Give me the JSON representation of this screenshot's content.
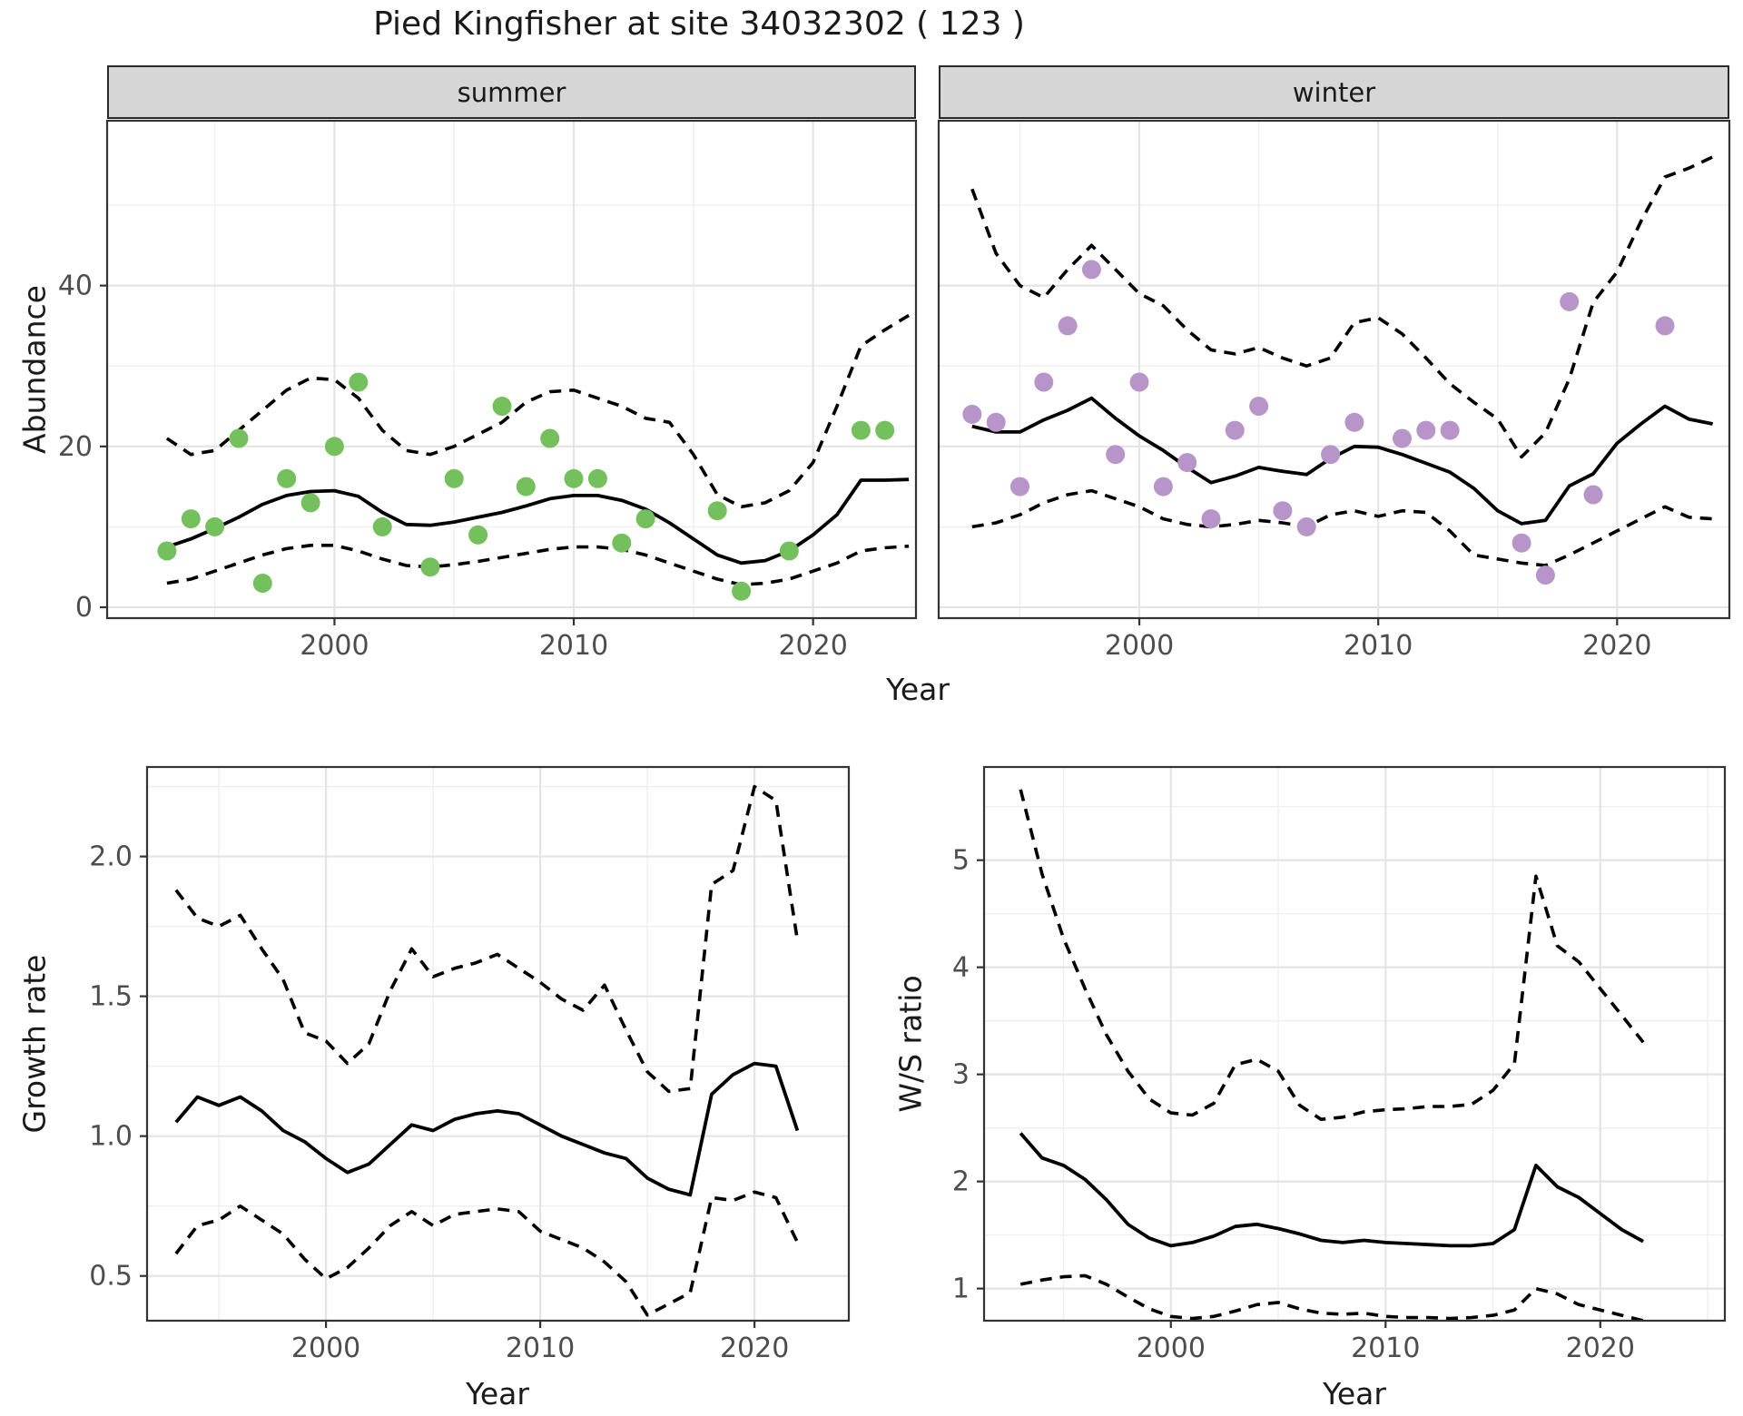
{
  "title": "Pied Kingfisher at site 34032302 ( 123 )",
  "colors": {
    "summer_point": "#73c05c",
    "winter_point": "#b795c8",
    "line": "#000000",
    "strip_bg": "#d6d6d6",
    "grid_major": "#e4e4e4",
    "grid_minor": "#efefef",
    "panel_border": "#333333",
    "tick_mark": "#333333",
    "tick_label": "#4d4d4d",
    "text": "#1a1a1a"
  },
  "top_row": {
    "ylabel": "Abundance",
    "xlabel": "Year"
  },
  "bottom_left": {
    "ylabel": "Growth rate",
    "xlabel": "Year"
  },
  "bottom_right": {
    "ylabel": "W/S ratio",
    "xlabel": "Year"
  },
  "chart_data": [
    {
      "id": "abundance_summer",
      "type": "line",
      "facet_label": "summer",
      "xlabel": "Year",
      "ylabel": "Abundance",
      "xlim": [
        1990.5,
        2024.3
      ],
      "ylim": [
        -1.35,
        60.5
      ],
      "x_ticks": [
        2000,
        2010,
        2020
      ],
      "x_tick_labels": [
        "2000",
        "2010",
        "2020"
      ],
      "x_minor": [
        1995,
        2005,
        2015
      ],
      "y_ticks": [
        0,
        20,
        40
      ],
      "y_tick_labels": [
        "0",
        "20",
        "40"
      ],
      "y_minor": [
        10,
        30,
        50
      ],
      "grid": true,
      "legend": "none",
      "points": [
        [
          1993,
          7
        ],
        [
          1994,
          11
        ],
        [
          1995,
          10
        ],
        [
          1996,
          21
        ],
        [
          1997,
          3
        ],
        [
          1998,
          16
        ],
        [
          1999,
          13
        ],
        [
          2000,
          20
        ],
        [
          2001,
          28
        ],
        [
          2002,
          10
        ],
        [
          2004,
          5
        ],
        [
          2005,
          16
        ],
        [
          2006,
          9
        ],
        [
          2007,
          25
        ],
        [
          2008,
          15
        ],
        [
          2009,
          21
        ],
        [
          2010,
          16
        ],
        [
          2011,
          16
        ],
        [
          2012,
          8
        ],
        [
          2013,
          11
        ],
        [
          2016,
          12
        ],
        [
          2017,
          2
        ],
        [
          2019,
          7
        ],
        [
          2022,
          22
        ],
        [
          2023,
          22
        ]
      ],
      "series": [
        {
          "name": "mean",
          "style": "solid",
          "start_year": 1993,
          "values": [
            7.5,
            8.5,
            9.8,
            11.2,
            12.8,
            13.9,
            14.4,
            14.5,
            13.8,
            11.8,
            10.3,
            10.2,
            10.6,
            11.2,
            11.8,
            12.6,
            13.5,
            13.9,
            13.9,
            13.3,
            12.2,
            10.5,
            8.5,
            6.5,
            5.5,
            5.8,
            7,
            9,
            11.5,
            15.8,
            15.8,
            15.9
          ]
        },
        {
          "name": "upper_ci",
          "style": "dashed",
          "start_year": 1993,
          "values": [
            21,
            19,
            19.5,
            22,
            24.5,
            27,
            28.5,
            28.3,
            26,
            22,
            19.5,
            19,
            20,
            21.5,
            23,
            25.5,
            26.8,
            27,
            26,
            25,
            23.5,
            23,
            19,
            14,
            12.5,
            13,
            14.5,
            18,
            25,
            32.5,
            34.5,
            36.3
          ]
        },
        {
          "name": "lower_ci",
          "style": "dashed",
          "start_year": 1993,
          "values": [
            3,
            3.5,
            4.5,
            5.5,
            6.5,
            7.3,
            7.7,
            7.7,
            7,
            6,
            5.2,
            5,
            5.3,
            5.7,
            6.2,
            6.7,
            7.2,
            7.5,
            7.5,
            7.2,
            6.5,
            5.5,
            4.5,
            3.5,
            2.8,
            3,
            3.5,
            4.5,
            5.5,
            7,
            7.4,
            7.6
          ]
        }
      ]
    },
    {
      "id": "abundance_winter",
      "type": "line",
      "facet_label": "winter",
      "xlabel": "Year",
      "ylabel": "Abundance",
      "xlim": [
        1991.6,
        2024.7
      ],
      "ylim": [
        -1.35,
        60.5
      ],
      "x_ticks": [
        2000,
        2010,
        2020
      ],
      "x_tick_labels": [
        "2000",
        "2010",
        "2020"
      ],
      "x_minor": [
        1995,
        2005,
        2015
      ],
      "y_ticks": [
        0,
        20,
        40
      ],
      "y_tick_labels": [],
      "y_minor": [
        10,
        30,
        50
      ],
      "grid": true,
      "legend": "none",
      "points": [
        [
          1993,
          24
        ],
        [
          1994,
          23
        ],
        [
          1995,
          15
        ],
        [
          1996,
          28
        ],
        [
          1997,
          35
        ],
        [
          1998,
          42
        ],
        [
          1999,
          19
        ],
        [
          2000,
          28
        ],
        [
          2001,
          15
        ],
        [
          2002,
          18
        ],
        [
          2003,
          11
        ],
        [
          2004,
          22
        ],
        [
          2005,
          25
        ],
        [
          2006,
          12
        ],
        [
          2007,
          10
        ],
        [
          2008,
          19
        ],
        [
          2009,
          23
        ],
        [
          2011,
          21
        ],
        [
          2012,
          22
        ],
        [
          2013,
          22
        ],
        [
          2016,
          8
        ],
        [
          2017,
          4
        ],
        [
          2018,
          38
        ],
        [
          2019,
          14
        ],
        [
          2022,
          35
        ]
      ],
      "series": [
        {
          "name": "mean",
          "style": "solid",
          "start_year": 1993,
          "values": [
            22.5,
            21.8,
            21.8,
            23.3,
            24.5,
            26,
            23.5,
            21.3,
            19.5,
            17.4,
            15.5,
            16.3,
            17.4,
            16.9,
            16.5,
            18.5,
            20,
            19.9,
            19,
            17.9,
            16.8,
            14.8,
            12,
            10.4,
            10.8,
            15.1,
            16.6,
            20.4,
            22.8,
            25,
            23.4,
            22.8
          ]
        },
        {
          "name": "upper_ci",
          "style": "dashed",
          "start_year": 1993,
          "values": [
            52,
            44,
            40,
            38.5,
            42,
            45,
            42,
            39,
            37.5,
            34.5,
            32,
            31.5,
            32.3,
            31,
            30,
            31,
            35.4,
            36,
            34,
            31,
            27.8,
            25.5,
            23.4,
            18.7,
            21.7,
            28.4,
            37.9,
            41.7,
            48,
            53.5,
            54.6,
            56
          ]
        },
        {
          "name": "lower_ci",
          "style": "dashed",
          "start_year": 1993,
          "values": [
            10,
            10.5,
            11.5,
            13,
            14,
            14.5,
            13.5,
            12.5,
            11,
            10.3,
            10,
            10.3,
            10.8,
            10.5,
            10,
            11.5,
            12,
            11.3,
            12,
            11.8,
            9.5,
            6.5,
            6,
            5.5,
            5.2,
            6.5,
            8,
            9.5,
            11,
            12.5,
            11.2,
            11
          ]
        }
      ]
    },
    {
      "id": "growth_rate",
      "type": "line",
      "facet_label": null,
      "xlabel": "Year",
      "ylabel": "Growth rate",
      "xlim": [
        1991.65,
        2024.4
      ],
      "ylim": [
        0.34,
        2.32
      ],
      "x_ticks": [
        2000,
        2010,
        2020
      ],
      "x_tick_labels": [
        "2000",
        "2010",
        "2020"
      ],
      "x_minor": [
        1995,
        2005,
        2015
      ],
      "y_ticks": [
        0.5,
        1.0,
        1.5,
        2.0
      ],
      "y_tick_labels": [
        "0.5",
        "1.0",
        "1.5",
        "2.0"
      ],
      "y_minor": [
        0.75,
        1.25,
        1.75,
        2.25
      ],
      "grid": true,
      "legend": "none",
      "points": [],
      "series": [
        {
          "name": "mean",
          "style": "solid",
          "start_year": 1993,
          "values": [
            1.05,
            1.14,
            1.11,
            1.14,
            1.09,
            1.02,
            0.98,
            0.92,
            0.87,
            0.9,
            0.97,
            1.04,
            1.02,
            1.06,
            1.08,
            1.09,
            1.08,
            1.04,
            1.0,
            0.97,
            0.94,
            0.92,
            0.85,
            0.81,
            0.79,
            1.15,
            1.22,
            1.26,
            1.25,
            1.02
          ]
        },
        {
          "name": "upper_ci",
          "style": "dashed",
          "start_year": 1993,
          "values": [
            1.88,
            1.78,
            1.75,
            1.79,
            1.67,
            1.56,
            1.37,
            1.34,
            1.26,
            1.33,
            1.52,
            1.67,
            1.57,
            1.6,
            1.62,
            1.65,
            1.6,
            1.55,
            1.49,
            1.45,
            1.54,
            1.38,
            1.23,
            1.16,
            1.17,
            1.9,
            1.95,
            2.25,
            2.2,
            1.7
          ]
        },
        {
          "name": "lower_ci",
          "style": "dashed",
          "start_year": 1993,
          "values": [
            0.58,
            0.68,
            0.7,
            0.75,
            0.7,
            0.65,
            0.56,
            0.49,
            0.53,
            0.6,
            0.68,
            0.73,
            0.68,
            0.72,
            0.73,
            0.74,
            0.73,
            0.66,
            0.63,
            0.6,
            0.55,
            0.48,
            0.36,
            0.4,
            0.44,
            0.78,
            0.77,
            0.8,
            0.78,
            0.62
          ]
        }
      ]
    },
    {
      "id": "ws_ratio",
      "type": "line",
      "facet_label": null,
      "xlabel": "Year",
      "ylabel": "W/S ratio",
      "xlim": [
        1991.3,
        2025.8
      ],
      "ylim": [
        0.7,
        5.87
      ],
      "x_ticks": [
        2000,
        2010,
        2020
      ],
      "x_tick_labels": [
        "2000",
        "2010",
        "2020"
      ],
      "x_minor": [
        1995,
        2005,
        2015,
        2025
      ],
      "y_ticks": [
        1,
        2,
        3,
        4,
        5
      ],
      "y_tick_labels": [
        "1",
        "2",
        "3",
        "4",
        "5"
      ],
      "y_minor": [
        1.5,
        2.5,
        3.5,
        4.5,
        5.5
      ],
      "grid": true,
      "legend": "none",
      "points": [],
      "series": [
        {
          "name": "mean",
          "style": "solid",
          "start_year": 1993,
          "values": [
            2.45,
            2.22,
            2.15,
            2.02,
            1.83,
            1.6,
            1.47,
            1.4,
            1.43,
            1.49,
            1.58,
            1.6,
            1.56,
            1.51,
            1.45,
            1.43,
            1.45,
            1.43,
            1.42,
            1.41,
            1.4,
            1.4,
            1.42,
            1.55,
            2.15,
            1.95,
            1.85,
            1.7,
            1.55,
            1.44
          ]
        },
        {
          "name": "upper_ci",
          "style": "dashed",
          "start_year": 1993,
          "values": [
            5.66,
            4.87,
            4.27,
            3.8,
            3.37,
            3.03,
            2.77,
            2.64,
            2.62,
            2.73,
            3.09,
            3.14,
            3.03,
            2.71,
            2.58,
            2.6,
            2.65,
            2.67,
            2.68,
            2.7,
            2.7,
            2.72,
            2.85,
            3.1,
            4.85,
            4.2,
            4.05,
            3.8,
            3.55,
            3.3
          ]
        },
        {
          "name": "lower_ci",
          "style": "dashed",
          "start_year": 1993,
          "values": [
            1.04,
            1.08,
            1.11,
            1.12,
            1.04,
            0.92,
            0.81,
            0.74,
            0.72,
            0.74,
            0.79,
            0.85,
            0.87,
            0.81,
            0.77,
            0.76,
            0.77,
            0.74,
            0.73,
            0.73,
            0.72,
            0.73,
            0.75,
            0.8,
            1.0,
            0.95,
            0.85,
            0.8,
            0.75,
            0.7
          ]
        }
      ]
    }
  ]
}
